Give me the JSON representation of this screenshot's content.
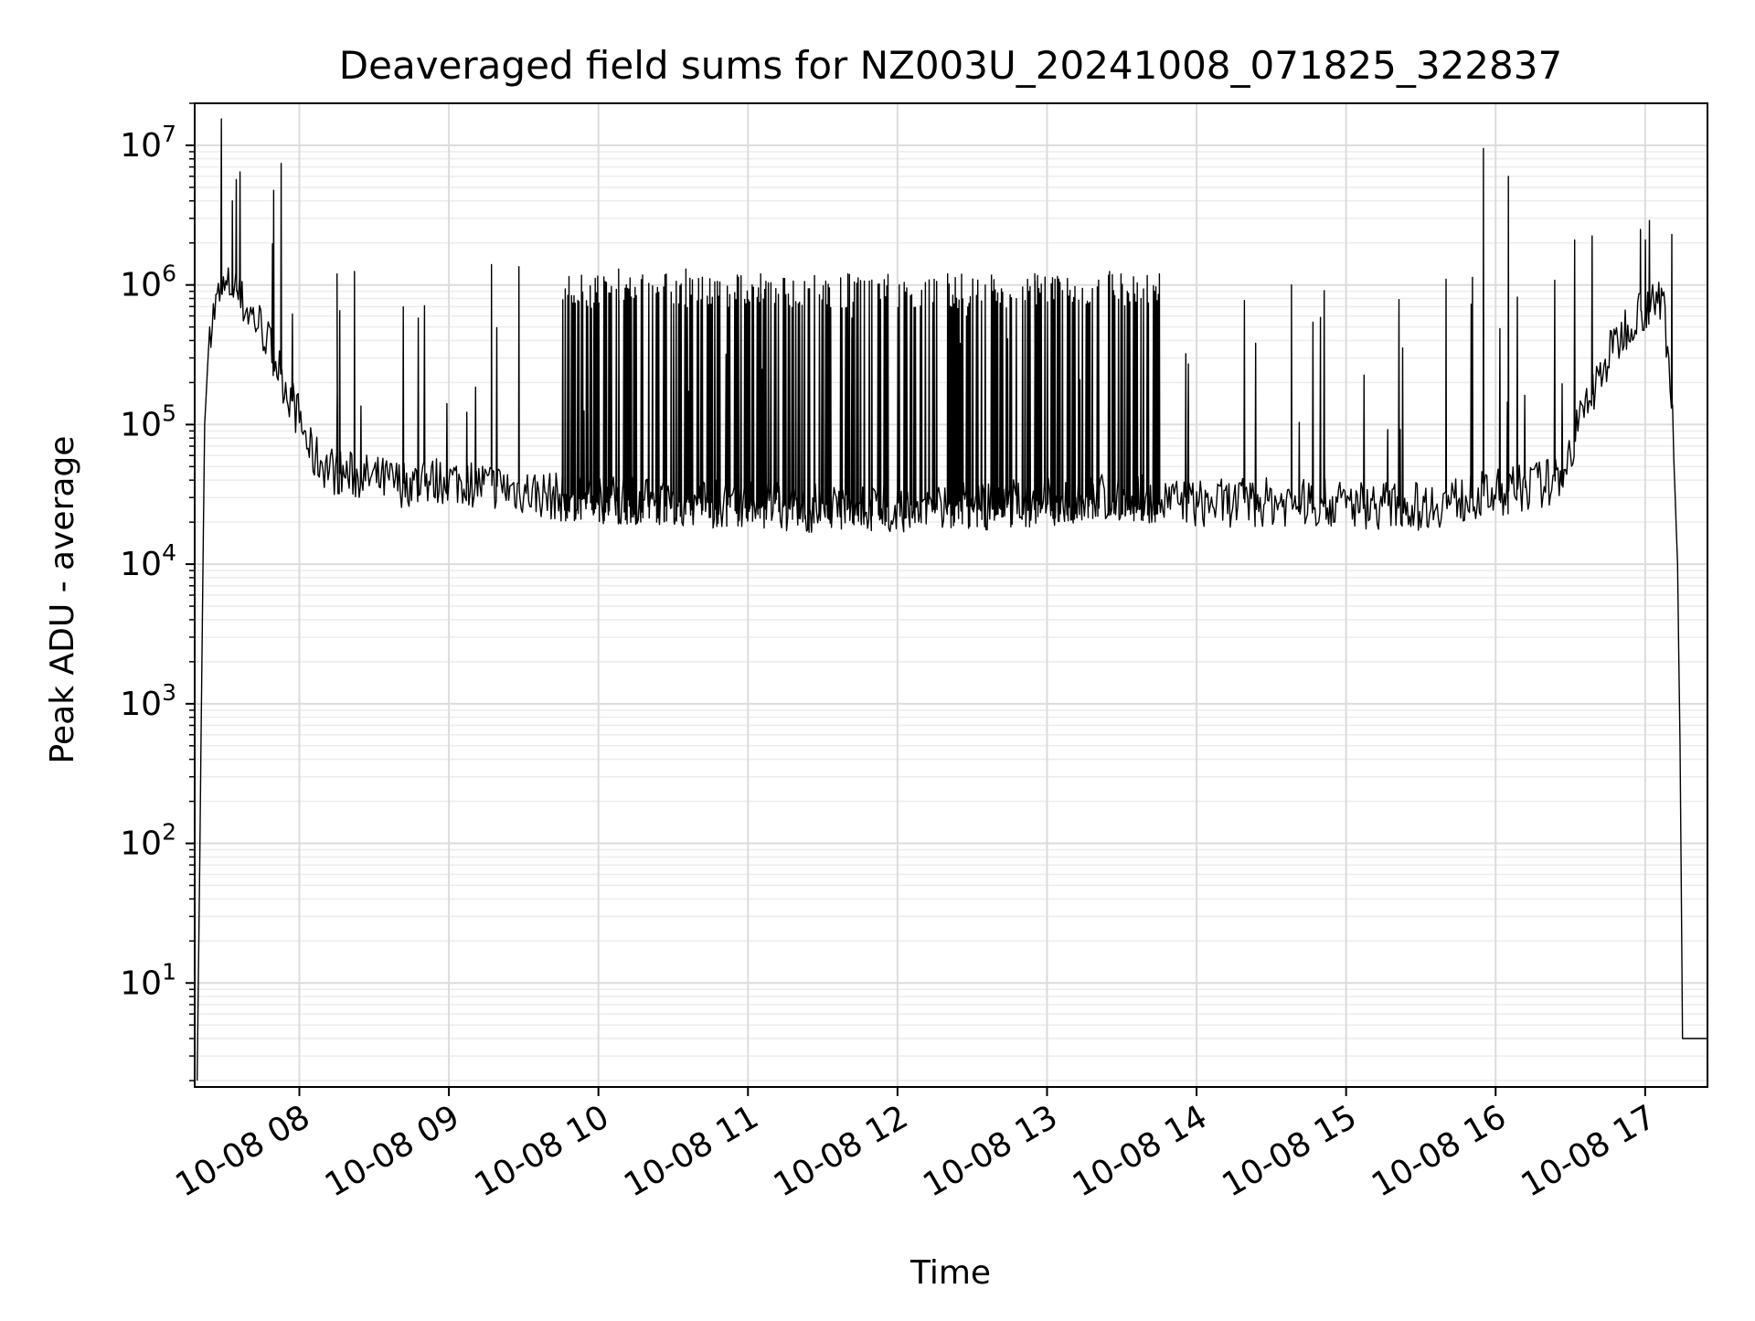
{
  "chart_data": {
    "type": "line",
    "title": "Deaveraged field sums for NZ003U_20241008_071825_322837",
    "xlabel": "Time",
    "ylabel": "Peak ADU - average",
    "yscale": "log",
    "ylim": [
      1.8,
      20000000
    ],
    "xlim": [
      "2024-10-08 07:18",
      "2024-10-08 17:25"
    ],
    "grid": true,
    "x_tick_labels": [
      "10-08 08",
      "10-08 09",
      "10-08 10",
      "10-08 11",
      "10-08 12",
      "10-08 13",
      "10-08 14",
      "10-08 15",
      "10-08 16",
      "10-08 17"
    ],
    "x_ticks": [
      "2024-10-08 08:00",
      "2024-10-08 09:00",
      "2024-10-08 10:00",
      "2024-10-08 11:00",
      "2024-10-08 12:00",
      "2024-10-08 13:00",
      "2024-10-08 14:00",
      "2024-10-08 15:00",
      "2024-10-08 16:00",
      "2024-10-08 17:00"
    ],
    "y_ticks": [
      {
        "base": "10",
        "exp": "1",
        "value": 10
      },
      {
        "base": "10",
        "exp": "2",
        "value": 100
      },
      {
        "base": "10",
        "exp": "3",
        "value": 1000
      },
      {
        "base": "10",
        "exp": "4",
        "value": 10000
      },
      {
        "base": "10",
        "exp": "5",
        "value": 100000
      },
      {
        "base": "10",
        "exp": "6",
        "value": 1000000
      },
      {
        "base": "10",
        "exp": "7",
        "value": 10000000
      }
    ],
    "series": [
      {
        "color": "#000000",
        "baseline_points": [
          {
            "x": "2024-10-08 07:19",
            "y": 2
          },
          {
            "x": "2024-10-08 07:20",
            "y": 70
          },
          {
            "x": "2024-10-08 07:21",
            "y": 3000
          },
          {
            "x": "2024-10-08 07:22",
            "y": 100000
          },
          {
            "x": "2024-10-08 07:24",
            "y": 500000
          },
          {
            "x": "2024-10-08 07:28",
            "y": 850000
          },
          {
            "x": "2024-10-08 07:33",
            "y": 1000000
          },
          {
            "x": "2024-10-08 07:38",
            "y": 700000
          },
          {
            "x": "2024-10-08 07:45",
            "y": 500000
          },
          {
            "x": "2024-10-08 07:50",
            "y": 300000
          },
          {
            "x": "2024-10-08 07:55",
            "y": 180000
          },
          {
            "x": "2024-10-08 08:00",
            "y": 110000
          },
          {
            "x": "2024-10-08 08:05",
            "y": 60000
          },
          {
            "x": "2024-10-08 08:15",
            "y": 45000
          },
          {
            "x": "2024-10-08 08:40",
            "y": 38000
          },
          {
            "x": "2024-10-08 09:00",
            "y": 40000
          },
          {
            "x": "2024-10-08 09:20",
            "y": 36000
          },
          {
            "x": "2024-10-08 09:45",
            "y": 30000
          },
          {
            "x": "2024-10-08 10:30",
            "y": 28000
          },
          {
            "x": "2024-10-08 11:30",
            "y": 25000
          },
          {
            "x": "2024-10-08 12:30",
            "y": 26000
          },
          {
            "x": "2024-10-08 13:30",
            "y": 30000
          },
          {
            "x": "2024-10-08 14:00",
            "y": 27000
          },
          {
            "x": "2024-10-08 14:30",
            "y": 28000
          },
          {
            "x": "2024-10-08 15:30",
            "y": 26000
          },
          {
            "x": "2024-10-08 16:00",
            "y": 32000
          },
          {
            "x": "2024-10-08 16:25",
            "y": 40000
          },
          {
            "x": "2024-10-08 16:30",
            "y": 65000
          },
          {
            "x": "2024-10-08 16:35",
            "y": 120000
          },
          {
            "x": "2024-10-08 16:45",
            "y": 300000
          },
          {
            "x": "2024-10-08 16:55",
            "y": 600000
          },
          {
            "x": "2024-10-08 17:05",
            "y": 800000
          },
          {
            "x": "2024-10-08 17:08",
            "y": 600000
          },
          {
            "x": "2024-10-08 17:11",
            "y": 100000
          },
          {
            "x": "2024-10-08 17:13",
            "y": 10000
          },
          {
            "x": "2024-10-08 17:14",
            "y": 500
          },
          {
            "x": "2024-10-08 17:15",
            "y": 4
          },
          {
            "x": "2024-10-08 17:25",
            "y": 4
          }
        ],
        "spikes": [
          {
            "x": "2024-10-08 07:33",
            "y": 4000000
          },
          {
            "x": "2024-10-08 07:36",
            "y": 1500000
          },
          {
            "x": "2024-10-08 08:15",
            "y": 1200000
          },
          {
            "x": "2024-10-08 08:22",
            "y": 1250000
          },
          {
            "x": "2024-10-08 09:17",
            "y": 1400000
          },
          {
            "x": "2024-10-08 09:28",
            "y": 1350000
          },
          {
            "x": "2024-10-08 10:08",
            "y": 1300000
          },
          {
            "x": "2024-10-08 10:35",
            "y": 1300000
          },
          {
            "x": "2024-10-08 11:05",
            "y": 1200000
          },
          {
            "x": "2024-10-08 11:40",
            "y": 1200000
          },
          {
            "x": "2024-10-08 12:20",
            "y": 1200000
          },
          {
            "x": "2024-10-08 12:55",
            "y": 1200000
          },
          {
            "x": "2024-10-08 13:25",
            "y": 1250000
          },
          {
            "x": "2024-10-08 13:45",
            "y": 1200000
          },
          {
            "x": "2024-10-08 14:38",
            "y": 1000000
          },
          {
            "x": "2024-10-08 15:40",
            "y": 1100000
          },
          {
            "x": "2024-10-08 15:55",
            "y": 9500000
          },
          {
            "x": "2024-10-08 16:05",
            "y": 6000000
          },
          {
            "x": "2024-10-08 16:58",
            "y": 2500000
          },
          {
            "x": "2024-10-08 17:00",
            "y": 2100000
          }
        ],
        "dense_spike_region": {
          "x_start": "2024-10-08 09:45",
          "x_end": "2024-10-08 13:45",
          "y_high": 1200000,
          "y_low": 20000
        }
      }
    ]
  }
}
